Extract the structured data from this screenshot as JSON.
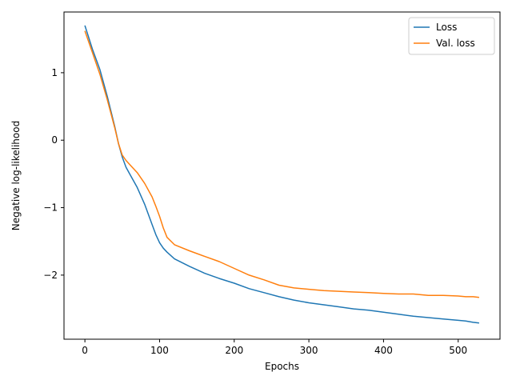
{
  "chart_data": {
    "type": "line",
    "title": "",
    "xlabel": "Epochs",
    "ylabel": "Negative log-likelihood",
    "xlim": [
      -28,
      556
    ],
    "ylim": [
      -2.95,
      1.9
    ],
    "xticks": [
      0,
      100,
      200,
      300,
      400,
      500
    ],
    "yticks": [
      1,
      0,
      -1,
      -2
    ],
    "ytick_labels": [
      "1",
      "0",
      "−1",
      "−2"
    ],
    "grid": false,
    "legend_position": "top-right",
    "series": [
      {
        "name": "Loss",
        "color": "#1f77b4",
        "x": [
          0,
          10,
          20,
          30,
          40,
          45,
          50,
          55,
          60,
          70,
          80,
          90,
          95,
          100,
          105,
          110,
          120,
          140,
          160,
          180,
          200,
          220,
          240,
          260,
          280,
          300,
          320,
          340,
          360,
          380,
          400,
          420,
          440,
          460,
          480,
          500,
          510,
          520,
          528
        ],
        "y": [
          1.7,
          1.35,
          1.05,
          0.65,
          0.2,
          -0.05,
          -0.25,
          -0.4,
          -0.5,
          -0.7,
          -0.95,
          -1.25,
          -1.4,
          -1.52,
          -1.6,
          -1.66,
          -1.76,
          -1.87,
          -1.97,
          -2.05,
          -2.12,
          -2.2,
          -2.26,
          -2.32,
          -2.37,
          -2.41,
          -2.44,
          -2.47,
          -2.5,
          -2.52,
          -2.55,
          -2.58,
          -2.61,
          -2.63,
          -2.65,
          -2.67,
          -2.68,
          -2.7,
          -2.71
        ]
      },
      {
        "name": "Val. loss",
        "color": "#ff7f0e",
        "x": [
          0,
          10,
          20,
          30,
          40,
          45,
          50,
          55,
          60,
          70,
          80,
          90,
          95,
          100,
          105,
          110,
          120,
          140,
          160,
          180,
          200,
          220,
          240,
          260,
          280,
          300,
          320,
          340,
          360,
          380,
          400,
          420,
          440,
          460,
          480,
          500,
          510,
          520,
          528
        ],
        "y": [
          1.62,
          1.3,
          0.98,
          0.6,
          0.18,
          -0.05,
          -0.22,
          -0.3,
          -0.36,
          -0.48,
          -0.64,
          -0.84,
          -0.98,
          -1.13,
          -1.3,
          -1.44,
          -1.55,
          -1.64,
          -1.72,
          -1.8,
          -1.9,
          -2.0,
          -2.07,
          -2.15,
          -2.19,
          -2.21,
          -2.23,
          -2.24,
          -2.25,
          -2.26,
          -2.27,
          -2.28,
          -2.28,
          -2.3,
          -2.3,
          -2.31,
          -2.32,
          -2.32,
          -2.33
        ]
      }
    ]
  }
}
